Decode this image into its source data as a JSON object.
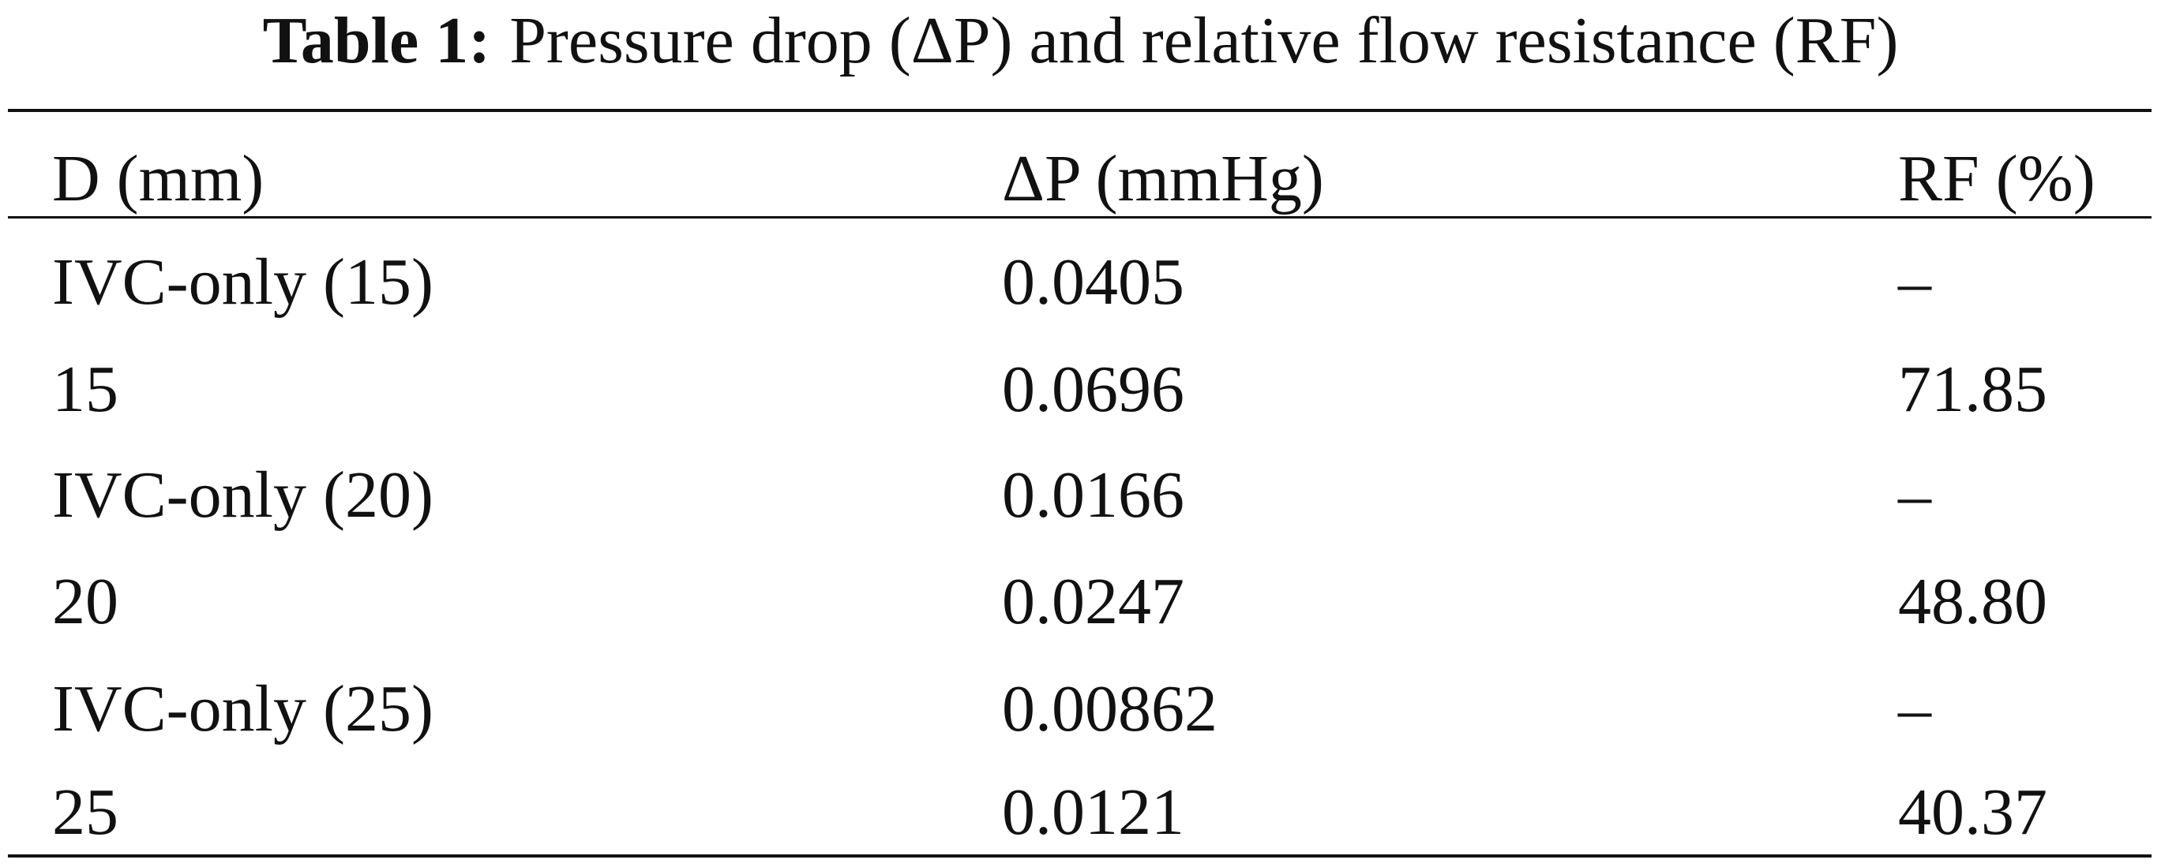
{
  "title": {
    "label": "Table 1:",
    "text": "Pressure drop (ΔP) and relative flow resistance (RF)"
  },
  "table": {
    "header": [
      "D (mm)",
      "ΔP (mmHg)",
      "RF (%)"
    ],
    "rows": [
      [
        "IVC-only (15)",
        "0.0405",
        "–"
      ],
      [
        "15",
        "0.0696",
        "71.85"
      ],
      [
        "IVC-only (20)",
        "0.0166",
        "–"
      ],
      [
        "20",
        "0.0247",
        "48.80"
      ],
      [
        "IVC-only (25)",
        "0.00862",
        "–"
      ],
      [
        "25",
        "0.0121",
        "40.37"
      ]
    ]
  }
}
